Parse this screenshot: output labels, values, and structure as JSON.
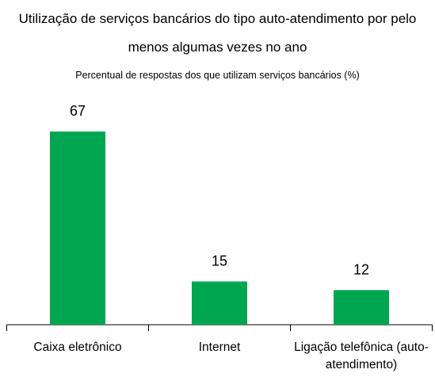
{
  "chart_data": {
    "type": "bar",
    "title": "Utilização de serviços bancários do tipo auto-atendimento por pelo menos algumas vezes no ano",
    "subtitle": "Percentual de respostas dos que utilizam serviços bancários (%)",
    "categories": [
      "Caixa eletrônico",
      "Internet",
      "Ligação telefônica (auto-atendimento)"
    ],
    "values": [
      67,
      15,
      12
    ],
    "color": "#00a650"
  }
}
